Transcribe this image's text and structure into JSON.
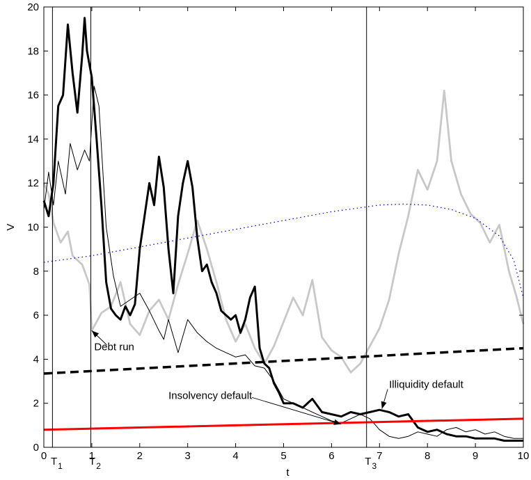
{
  "chart_data": {
    "type": "line",
    "xlabel": "t",
    "ylabel": "V",
    "xlim": [
      0,
      10
    ],
    "ylim": [
      0,
      20
    ],
    "xticks": [
      0,
      1,
      2,
      3,
      4,
      5,
      6,
      7,
      8,
      9,
      10
    ],
    "yticks": [
      0,
      2,
      4,
      6,
      8,
      10,
      12,
      14,
      16,
      18,
      20
    ],
    "grid": false,
    "vlines": [
      {
        "x": 0.18,
        "label": "T",
        "sub": "1"
      },
      {
        "x": 0.98,
        "label": "T",
        "sub": "2"
      },
      {
        "x": 6.73,
        "label": "T",
        "sub": "3"
      }
    ],
    "annotations": [
      {
        "text": "Debt run",
        "x": 1.05,
        "y": 4.4,
        "arrow_to": [
          1.0,
          5.3
        ]
      },
      {
        "text": "Insolvency default",
        "x": 2.6,
        "y": 2.2,
        "arrow_to": [
          6.2,
          1.05
        ]
      },
      {
        "text": "Illiquidity default",
        "x": 7.2,
        "y": 2.7,
        "arrow_to": [
          7.05,
          1.75
        ]
      }
    ],
    "series": [
      {
        "style": "gray",
        "color": "#c8c8c8",
        "x": [
          0,
          0.1,
          0.2,
          0.35,
          0.5,
          0.6,
          0.8,
          0.95,
          1.0,
          1.2,
          1.4,
          1.6,
          1.8,
          2.0,
          2.2,
          2.4,
          2.6,
          2.8,
          3.0,
          3.2,
          3.4,
          3.6,
          3.8,
          4.0,
          4.2,
          4.4,
          4.6,
          4.8,
          5.0,
          5.2,
          5.4,
          5.6,
          5.8,
          6.0,
          6.2,
          6.4,
          6.6,
          6.8,
          7.0,
          7.2,
          7.4,
          7.6,
          7.8,
          8.0,
          8.2,
          8.35,
          8.5,
          8.7,
          8.9,
          9.1,
          9.3,
          9.5,
          9.7,
          9.85,
          10.0
        ],
        "y": [
          12.0,
          11.5,
          10.2,
          9.3,
          9.8,
          8.7,
          8.3,
          7.4,
          5.3,
          6.1,
          6.4,
          7.5,
          5.6,
          5.1,
          6.2,
          6.7,
          5.8,
          7.4,
          8.8,
          10.3,
          9.0,
          7.5,
          5.8,
          4.8,
          5.6,
          4.5,
          3.8,
          4.6,
          5.7,
          6.8,
          6.0,
          7.6,
          5.0,
          4.4,
          4.1,
          3.4,
          3.8,
          4.6,
          5.4,
          6.7,
          8.8,
          10.5,
          12.6,
          11.7,
          13.0,
          16.2,
          13.0,
          11.5,
          10.6,
          10.2,
          9.3,
          10.1,
          8.0,
          6.9,
          5.6
        ]
      },
      {
        "style": "thin",
        "color": "#000000",
        "x": [
          0,
          0.1,
          0.2,
          0.3,
          0.45,
          0.55,
          0.7,
          0.85,
          0.95,
          1.05,
          1.15,
          1.3,
          1.45,
          1.6,
          1.8,
          2.0,
          2.2,
          2.4,
          2.5,
          2.6,
          2.8,
          3.0,
          3.2,
          3.4,
          3.6,
          3.8,
          4.0,
          4.2,
          4.4,
          4.6,
          4.8,
          5.0,
          5.2,
          5.4,
          5.6,
          5.8,
          6.0,
          6.2,
          6.4,
          6.6,
          6.8,
          7.0,
          7.2,
          7.4,
          7.6,
          7.8,
          8.0,
          8.2,
          8.4,
          8.6,
          8.8,
          9.0,
          9.2,
          9.4,
          9.6,
          9.8,
          10.0
        ],
        "y": [
          10.8,
          12.5,
          11.0,
          13.0,
          11.5,
          13.8,
          12.6,
          13.5,
          13.0,
          16.4,
          15.5,
          10.0,
          7.8,
          6.4,
          6.7,
          7.0,
          6.2,
          5.3,
          4.9,
          5.8,
          4.3,
          5.8,
          5.2,
          4.8,
          4.5,
          4.3,
          4.1,
          4.2,
          3.7,
          3.6,
          3.0,
          2.2,
          2.0,
          1.8,
          1.6,
          1.4,
          1.2,
          1.1,
          1.3,
          1.5,
          1.3,
          0.8,
          0.5,
          0.4,
          0.5,
          0.7,
          0.6,
          0.5,
          0.8,
          0.9,
          0.7,
          0.8,
          0.6,
          0.7,
          0.5,
          0.4,
          0.4
        ]
      },
      {
        "style": "thick",
        "color": "#000000",
        "x": [
          0,
          0.1,
          0.2,
          0.3,
          0.4,
          0.5,
          0.6,
          0.7,
          0.8,
          0.85,
          0.9,
          1.0,
          1.1,
          1.2,
          1.3,
          1.4,
          1.5,
          1.6,
          1.7,
          1.8,
          1.9,
          2.0,
          2.1,
          2.2,
          2.3,
          2.4,
          2.5,
          2.6,
          2.7,
          2.8,
          2.9,
          3.0,
          3.1,
          3.2,
          3.3,
          3.4,
          3.5,
          3.6,
          3.7,
          3.8,
          3.9,
          4.0,
          4.1,
          4.2,
          4.3,
          4.4,
          4.5,
          4.6,
          4.7,
          4.8,
          4.9,
          5.0,
          5.2,
          5.4,
          5.6,
          5.8,
          6.0,
          6.2,
          6.4,
          6.6,
          6.8,
          7.0,
          7.2,
          7.4,
          7.6,
          7.8,
          8.0,
          8.2,
          8.4,
          8.6,
          8.8,
          9.0,
          9.2,
          9.4,
          9.6,
          9.8,
          10.0
        ],
        "y": [
          11.2,
          10.5,
          12.0,
          15.5,
          16.0,
          19.2,
          17.0,
          15.2,
          17.8,
          19.5,
          18.0,
          16.8,
          14.0,
          11.0,
          7.5,
          6.3,
          6.0,
          5.8,
          6.4,
          6.0,
          6.5,
          9.0,
          10.5,
          12.0,
          11.0,
          13.2,
          11.8,
          9.0,
          7.0,
          10.5,
          12.0,
          13.0,
          11.8,
          9.5,
          8.0,
          8.3,
          7.5,
          7.0,
          6.2,
          6.0,
          5.8,
          6.0,
          5.2,
          5.8,
          6.8,
          7.3,
          4.5,
          3.8,
          3.6,
          2.9,
          2.5,
          2.0,
          2.0,
          1.8,
          2.2,
          1.6,
          1.5,
          1.4,
          1.6,
          1.5,
          1.6,
          1.7,
          1.6,
          1.4,
          1.5,
          0.9,
          0.7,
          0.8,
          0.6,
          0.5,
          0.5,
          0.4,
          0.4,
          0.4,
          0.3,
          0.3,
          0.3
        ]
      },
      {
        "style": "dotted-blue",
        "color": "#0000ff",
        "x": [
          0,
          1,
          2,
          3,
          4,
          5,
          6,
          7,
          7.5,
          8,
          8.5,
          9,
          9.5,
          9.8,
          10.0
        ],
        "y": [
          8.4,
          8.7,
          9.1,
          9.5,
          9.9,
          10.3,
          10.7,
          11.0,
          11.05,
          11.0,
          10.8,
          10.4,
          9.6,
          8.5,
          6.8
        ]
      },
      {
        "style": "dashed",
        "color": "#000000",
        "x": [
          0,
          10
        ],
        "y": [
          3.35,
          4.5
        ]
      },
      {
        "style": "red",
        "color": "#ff0000",
        "x": [
          0,
          10
        ],
        "y": [
          0.8,
          1.3
        ]
      }
    ]
  }
}
